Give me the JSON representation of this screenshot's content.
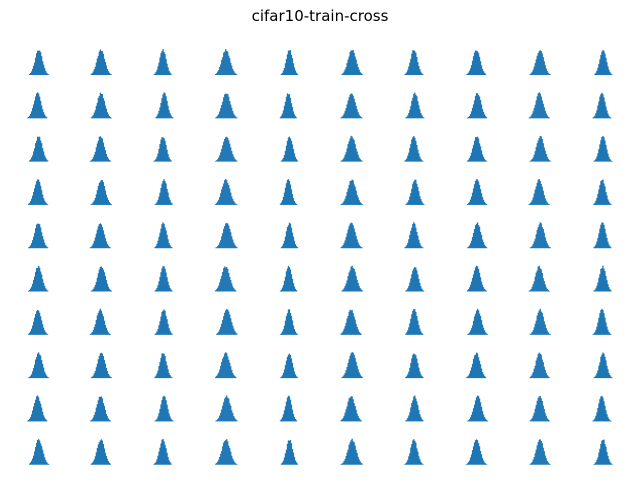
{
  "chart_data": {
    "type": "histogram-grid",
    "title": "cifar10-train-cross",
    "rows": 10,
    "cols": 10,
    "shape": "approximately normal (bell-shaped) histogram",
    "bar_color": "#1f77b4",
    "axes_visible": false,
    "xlabel": "",
    "ylabel": ""
  }
}
